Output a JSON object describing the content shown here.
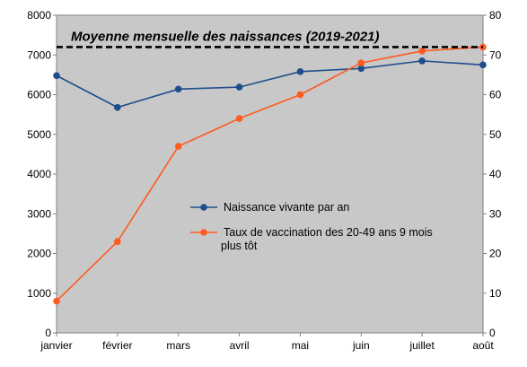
{
  "chart_data": {
    "type": "line",
    "title": "",
    "xlabel": "",
    "ylabel": "",
    "categories": [
      "janvier",
      "février",
      "mars",
      "avril",
      "mai",
      "juin",
      "juillet",
      "août"
    ],
    "ylim": [
      0,
      8000
    ],
    "y2lim": [
      0,
      80
    ],
    "y_ticks": [
      "0",
      "1000",
      "2000",
      "3000",
      "4000",
      "5000",
      "6000",
      "7000",
      "8000"
    ],
    "y2_ticks": [
      "0",
      "10",
      "20",
      "30",
      "40",
      "50",
      "60",
      "70",
      "80"
    ],
    "grid": false,
    "background_color": "#c8c8c8",
    "legend_position": "center-right",
    "series": [
      {
        "name": "Naissance vivante par an",
        "axis": "left",
        "color": "#1f4e8c",
        "values": [
          6480,
          5680,
          6140,
          6190,
          6580,
          6660,
          6850,
          6750
        ]
      },
      {
        "name_lines": [
          "Taux de vaccination des 20-49 ans 9 mois",
          "plus tôt"
        ],
        "axis": "right",
        "color": "#ff5a1f",
        "values": [
          8,
          23,
          47,
          54,
          60,
          68,
          71,
          72
        ]
      }
    ],
    "reference_line": {
      "axis": "left",
      "value": 7200,
      "style": "dashed",
      "color": "#000000",
      "label": "Moyenne mensuelle des naissances (2019-2021)"
    }
  }
}
